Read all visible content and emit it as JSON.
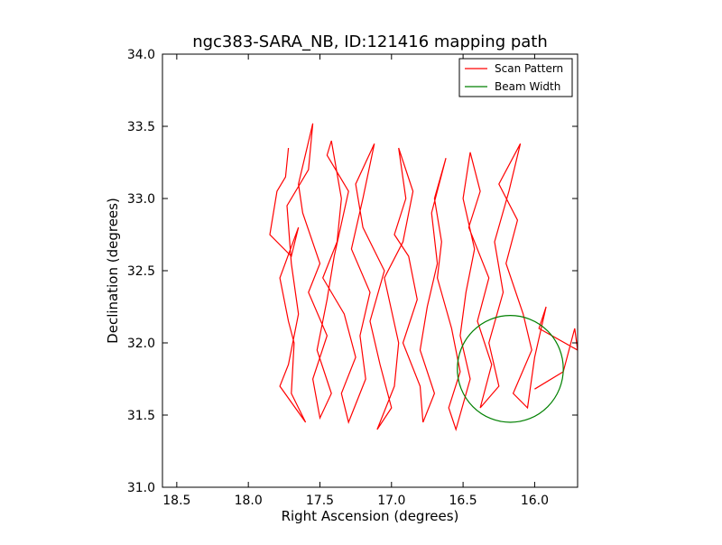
{
  "chart_data": {
    "type": "line",
    "title": "ngc383-SARA_NB, ID:121416 mapping path",
    "xlabel": "Right Ascension (degrees)",
    "ylabel": "Declination (degrees)",
    "xlim": [
      18.6,
      15.7
    ],
    "ylim": [
      31.0,
      34.0
    ],
    "x_inverted": true,
    "xticks": [
      18.5,
      18.0,
      17.5,
      17.0,
      16.5,
      16.0
    ],
    "xtick_labels": [
      "18.5",
      "18.0",
      "17.5",
      "17.0",
      "16.5",
      "16.0"
    ],
    "yticks": [
      31.0,
      31.5,
      32.0,
      32.5,
      33.0,
      33.5,
      34.0
    ],
    "ytick_labels": [
      "31.0",
      "31.5",
      "32.0",
      "32.5",
      "33.0",
      "33.5",
      "34.0"
    ],
    "grid": false,
    "legend_position": "top-right",
    "series": [
      {
        "name": "Scan Pattern",
        "color": "#ff0000",
        "x": [
          17.72,
          17.74,
          17.8,
          17.85,
          17.7,
          17.65,
          17.78,
          17.72,
          17.68,
          17.7,
          17.6,
          17.78,
          17.72,
          17.65,
          17.7,
          17.73,
          17.58,
          17.55,
          17.65,
          17.62,
          17.5,
          17.58,
          17.45,
          17.55,
          17.5,
          17.42,
          17.52,
          17.45,
          17.4,
          17.3,
          17.45,
          17.42,
          17.35,
          17.38,
          17.48,
          17.33,
          17.25,
          17.35,
          17.3,
          17.18,
          17.22,
          17.15,
          17.28,
          17.2,
          17.12,
          17.25,
          17.2,
          17.05,
          17.15,
          17.08,
          17.0,
          17.1,
          16.98,
          16.95,
          17.05,
          16.92,
          16.85,
          16.95,
          16.9,
          16.98,
          16.88,
          16.82,
          16.92,
          16.8,
          16.78,
          16.7,
          16.8,
          16.75,
          16.68,
          16.72,
          16.62,
          16.7,
          16.65,
          16.68,
          16.58,
          16.52,
          16.6,
          16.55,
          16.45,
          16.52,
          16.48,
          16.42,
          16.5,
          16.45,
          16.38,
          16.46,
          16.32,
          16.4,
          16.3,
          16.38,
          16.25,
          16.32,
          16.22,
          16.28,
          16.18,
          16.1,
          16.25,
          16.12,
          16.2,
          16.08,
          16.02,
          16.15,
          16.05,
          16.0,
          15.92,
          15.97,
          15.7,
          15.72,
          15.8,
          16.0
        ],
        "y": [
          33.35,
          33.15,
          33.05,
          32.75,
          32.6,
          32.8,
          32.45,
          32.15,
          32.0,
          31.65,
          31.45,
          31.7,
          31.85,
          32.2,
          32.55,
          32.95,
          33.2,
          33.52,
          33.1,
          32.9,
          32.55,
          32.35,
          32.05,
          31.75,
          31.48,
          31.65,
          31.95,
          32.3,
          32.6,
          33.05,
          33.3,
          33.4,
          33.0,
          32.7,
          32.45,
          32.2,
          31.9,
          31.65,
          31.45,
          31.75,
          32.05,
          32.35,
          32.65,
          33.0,
          33.38,
          33.1,
          32.8,
          32.5,
          32.15,
          31.85,
          31.55,
          31.4,
          31.7,
          32.0,
          32.45,
          32.7,
          33.05,
          33.35,
          33.0,
          32.75,
          32.6,
          32.3,
          32.0,
          31.7,
          31.45,
          31.65,
          31.95,
          32.25,
          32.55,
          32.9,
          33.28,
          33.0,
          32.7,
          32.45,
          32.1,
          31.8,
          31.55,
          31.4,
          31.75,
          32.05,
          32.35,
          32.65,
          33.0,
          33.32,
          33.05,
          32.8,
          32.45,
          32.15,
          31.85,
          31.55,
          31.7,
          32.0,
          32.35,
          32.7,
          33.05,
          33.38,
          33.1,
          32.85,
          32.55,
          32.2,
          31.95,
          31.65,
          31.55,
          31.9,
          32.25,
          32.1,
          31.95,
          32.1,
          31.8,
          31.68
        ]
      },
      {
        "name": "Beam Width",
        "color": "#008000",
        "shape": "circle",
        "center": [
          16.17,
          31.82
        ],
        "radius_deg": 0.37
      }
    ]
  }
}
